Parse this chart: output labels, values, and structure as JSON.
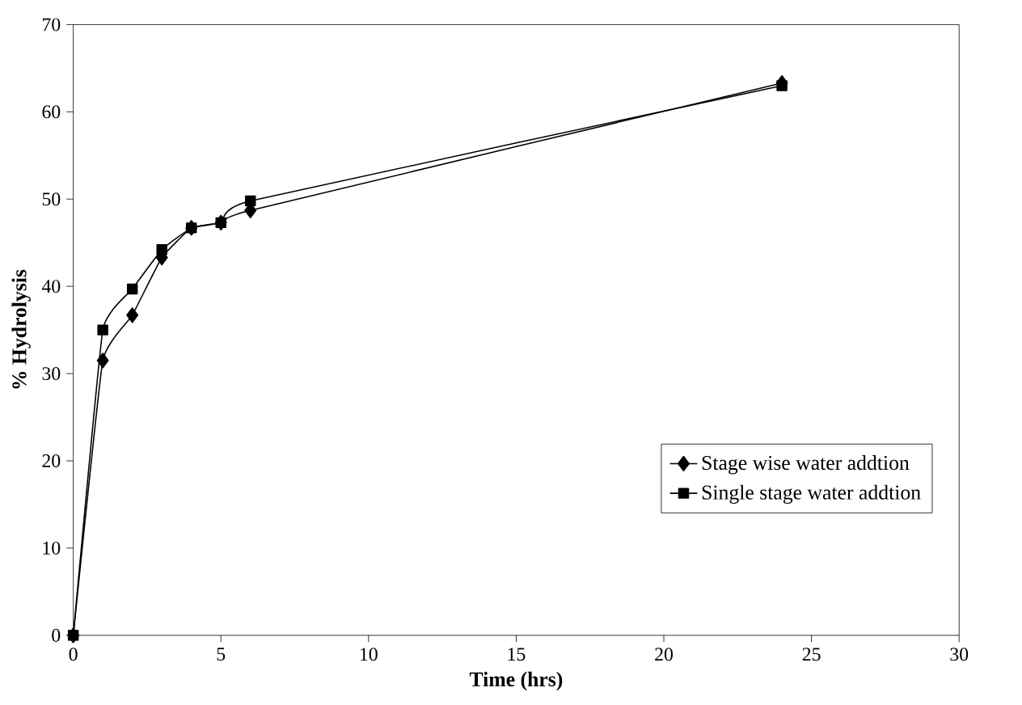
{
  "chart_data": {
    "type": "line",
    "xlabel": "Time (hrs)",
    "ylabel": "% Hydrolysis",
    "xlim": [
      0,
      30
    ],
    "ylim": [
      0,
      70
    ],
    "xticks": [
      0,
      5,
      10,
      15,
      20,
      25,
      30
    ],
    "yticks": [
      0,
      10,
      20,
      30,
      40,
      50,
      60,
      70
    ],
    "legend": "bottom right",
    "grid": false,
    "line_style": "solid",
    "series": [
      {
        "name": "Stage wise water addtion",
        "color": "#000000",
        "marker": "diamond",
        "x": [
          0,
          1,
          2,
          3,
          4,
          5,
          6,
          24
        ],
        "values": [
          0,
          31.5,
          36.7,
          43.3,
          46.7,
          47.3,
          48.7,
          63.3
        ]
      },
      {
        "name": "Single stage water addtion",
        "color": "#000000",
        "marker": "square",
        "x": [
          0,
          1,
          2,
          3,
          4,
          5,
          6,
          24
        ],
        "values": [
          0,
          35,
          39.7,
          44.2,
          46.7,
          47.3,
          49.8,
          63
        ]
      }
    ]
  }
}
